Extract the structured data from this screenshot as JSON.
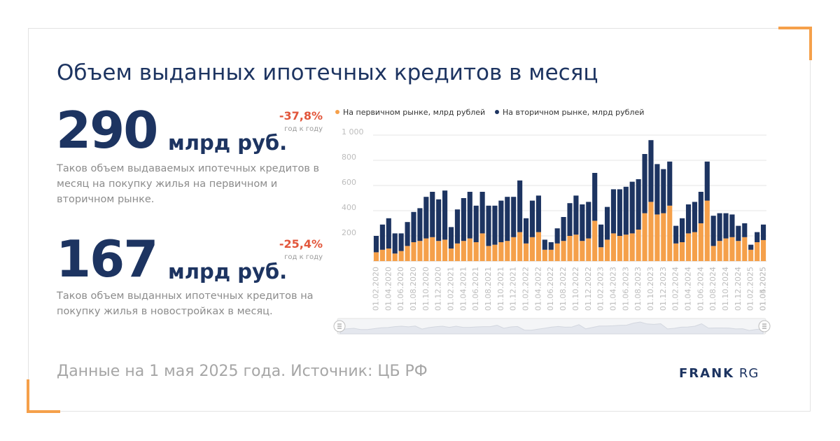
{
  "title": "Объем выданных ипотечных кредитов в месяц",
  "stat1": {
    "value": "290",
    "unit": "млрд руб.",
    "change": "-37,8%",
    "change_label": "год к году",
    "description": "Таков объем выдаваемых ипотечных кредитов в месяц на покупку жилья на первичном и вторичном рынке."
  },
  "stat2": {
    "value": "167",
    "unit": "млрд руб.",
    "change": "-25,4%",
    "change_label": "год к году",
    "description": "Таков объем выданных ипотечных кредитов на покупку жилья в новостройках в месяц."
  },
  "footer": "Данные на 1 мая 2025 года. Источник: ЦБ РФ",
  "logo": {
    "brand": "FRANK",
    "suffix": "RG"
  },
  "colors": {
    "primary": "#f5a04a",
    "secondary": "#1d3461",
    "negative": "#e2563b"
  },
  "chart_data": {
    "type": "bar",
    "stacked": true,
    "legend_position": "top",
    "y_ticks": [
      "200",
      "400",
      "600",
      "800",
      "1 000"
    ],
    "ylim": [
      0,
      1000
    ],
    "x_tick_labels": [
      "01.02.2020",
      "01.04.2020",
      "01.06.2020",
      "01.08.2020",
      "01.10.2020",
      "01.12.2020",
      "01.02.2021",
      "01.04.2021",
      "01.06.2021",
      "01.08.2021",
      "01.10.2021",
      "01.12.2021",
      "01.02.2022",
      "01.04.2022",
      "01.06.2022",
      "01.08.2022",
      "01.10.2022",
      "01.12.2022",
      "01.02.2023",
      "01.04.2023",
      "01.06.2023",
      "01.08.2023",
      "01.10.2023",
      "01.12.2023",
      "01.02.2024",
      "01.04.2024",
      "01.06.2024",
      "01.08.2024",
      "01.10.2024",
      "01.12.2024",
      "01.02.2025",
      "01.04.2025",
      "01.05.2025"
    ],
    "series": [
      {
        "name": "На первичном рынке, млрд рублей",
        "values": [
          70,
          90,
          100,
          60,
          80,
          120,
          150,
          160,
          180,
          190,
          160,
          170,
          100,
          140,
          160,
          180,
          150,
          220,
          120,
          130,
          150,
          160,
          190,
          230,
          140,
          190,
          230,
          90,
          90,
          140,
          160,
          200,
          210,
          160,
          180,
          320,
          110,
          170,
          220,
          200,
          210,
          220,
          250,
          380,
          470,
          370,
          380,
          440,
          140,
          150,
          220,
          230,
          300,
          480,
          120,
          160,
          180,
          190,
          160,
          190,
          90,
          150,
          167
        ]
      },
      {
        "name": "На вторичном рынке, млрд рублей",
        "values": [
          130,
          200,
          240,
          160,
          140,
          190,
          240,
          260,
          330,
          360,
          330,
          390,
          170,
          270,
          340,
          370,
          290,
          330,
          320,
          310,
          330,
          350,
          320,
          410,
          200,
          290,
          290,
          80,
          60,
          120,
          190,
          260,
          310,
          290,
          290,
          380,
          180,
          260,
          350,
          370,
          380,
          410,
          400,
          470,
          490,
          400,
          350,
          350,
          140,
          190,
          230,
          240,
          250,
          310,
          240,
          220,
          200,
          180,
          120,
          110,
          40,
          80,
          123
        ]
      }
    ]
  }
}
